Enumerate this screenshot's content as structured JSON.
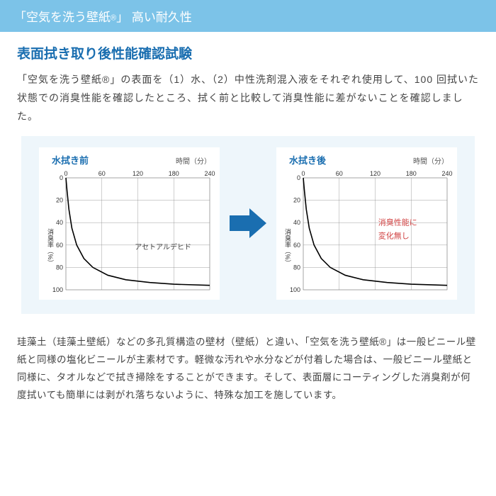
{
  "header": {
    "title_pre": "「空気を洗う壁紙",
    "title_r": "®",
    "title_post": "」 高い耐久性"
  },
  "section": {
    "title": "表面拭き取り後性能確認試験",
    "paragraph": "「空気を洗う壁紙®」の表面を（1）水、（2）中性洗剤混入液をそれぞれ使用して、100 回拭いた状態での消臭性能を確認したところ、拭く前と比較して消臭性能に差がないことを確認しました。"
  },
  "charts": {
    "before": {
      "title": "水拭き前",
      "xlabel": "時間（分）",
      "ylabel": "消臭率（%）",
      "annotation": "アセトアルデヒド",
      "xlim": [
        0,
        240
      ],
      "ylim_top": 0,
      "ylim_bottom": 100,
      "xtick_labels": [
        "0",
        "60",
        "120",
        "180",
        "240"
      ],
      "ytick_labels": [
        "0",
        "20",
        "40",
        "60",
        "80",
        "100"
      ],
      "line_color": "#000000",
      "grid_color": "#888888",
      "bg": "#ffffff",
      "annotation_color": "#444444",
      "curve": [
        [
          0,
          0
        ],
        [
          2,
          12
        ],
        [
          5,
          28
        ],
        [
          10,
          45
        ],
        [
          18,
          60
        ],
        [
          30,
          72
        ],
        [
          45,
          80
        ],
        [
          70,
          87
        ],
        [
          100,
          91
        ],
        [
          140,
          93.5
        ],
        [
          180,
          95
        ],
        [
          240,
          96
        ]
      ]
    },
    "after": {
      "title": "水拭き後",
      "xlabel": "時間（分）",
      "ylabel": "消臭率（%）",
      "annotation1": "消臭性能に",
      "annotation2": "変化無し",
      "annotation_color": "#d04040",
      "xlim": [
        0,
        240
      ],
      "ylim_top": 0,
      "ylim_bottom": 100,
      "xtick_labels": [
        "0",
        "60",
        "120",
        "180",
        "240"
      ],
      "ytick_labels": [
        "0",
        "20",
        "40",
        "60",
        "80",
        "100"
      ],
      "line_color": "#000000",
      "grid_color": "#888888",
      "bg": "#ffffff",
      "curve": [
        [
          0,
          0
        ],
        [
          2,
          12
        ],
        [
          5,
          28
        ],
        [
          10,
          45
        ],
        [
          18,
          60
        ],
        [
          30,
          72
        ],
        [
          45,
          80
        ],
        [
          70,
          87
        ],
        [
          100,
          91
        ],
        [
          140,
          93.5
        ],
        [
          180,
          95
        ],
        [
          240,
          96
        ]
      ]
    },
    "arrow_color": "#1a6eb0"
  },
  "footer": {
    "paragraph": "珪藻土（珪藻土壁紙）などの多孔質構造の壁材（壁紙）と違い、「空気を洗う壁紙®」は一般ビニール壁紙と同様の塩化ビニールが主素材です。軽微な汚れや水分などが付着した場合は、一般ビニール壁紙と同様に、タオルなどで拭き掃除をすることができます。そして、表面層にコーティングした消臭剤が何度拭いても簡単には剥がれ落ちないように、特殊な加工を施しています。"
  }
}
